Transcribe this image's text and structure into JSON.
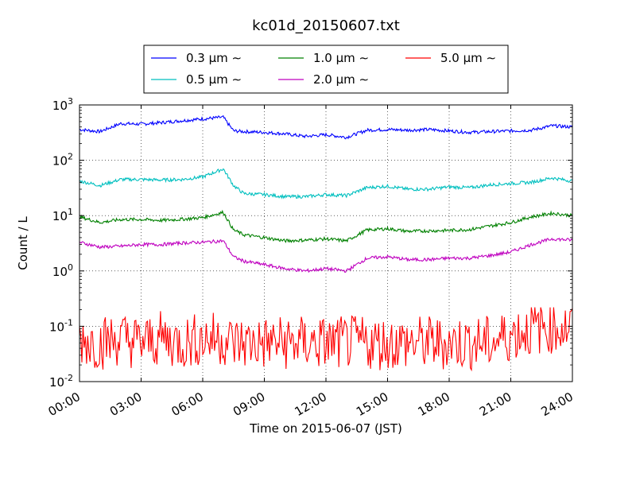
{
  "chart_data": {
    "type": "line",
    "title": "kc01d_20150607.txt",
    "xlabel": "Time on 2015-06-07 (JST)",
    "ylabel": "Count / L",
    "yscale": "log",
    "ylim": [
      0.01,
      1000
    ],
    "xlim": [
      "00:00",
      "24:00"
    ],
    "grid": true,
    "legend_position": "top-center",
    "x_ticks": [
      "00:00",
      "03:00",
      "06:00",
      "09:00",
      "12:00",
      "15:00",
      "18:00",
      "21:00",
      "24:00"
    ],
    "y_ticks": [
      {
        "base": "10",
        "exp": "-2",
        "value": 0.01
      },
      {
        "base": "10",
        "exp": "-1",
        "value": 0.1
      },
      {
        "base": "10",
        "exp": "0",
        "value": 1
      },
      {
        "base": "10",
        "exp": "1",
        "value": 10
      },
      {
        "base": "10",
        "exp": "2",
        "value": 100
      },
      {
        "base": "10",
        "exp": "3",
        "value": 1000
      }
    ],
    "x_hours": [
      0,
      1,
      2,
      3,
      4,
      5,
      6,
      7,
      7.5,
      8,
      9,
      10,
      11,
      12,
      13,
      14,
      15,
      16,
      17,
      18,
      19,
      20,
      21,
      22,
      23,
      24
    ],
    "series": [
      {
        "name": "0.3 µm ∼",
        "color": "#0000ff",
        "values": [
          360,
          330,
          460,
          450,
          480,
          520,
          560,
          600,
          340,
          330,
          320,
          300,
          270,
          290,
          260,
          350,
          360,
          350,
          360,
          340,
          320,
          330,
          340,
          350,
          420,
          400
        ]
      },
      {
        "name": "0.5 µm ∼",
        "color": "#00bfbf",
        "values": [
          42,
          35,
          45,
          45,
          44,
          45,
          50,
          70,
          35,
          25,
          24,
          22,
          22,
          24,
          23,
          32,
          34,
          30,
          30,
          33,
          32,
          36,
          38,
          40,
          48,
          42
        ]
      },
      {
        "name": "1.0 µm ∼",
        "color": "#008000",
        "values": [
          9.5,
          7.5,
          8.5,
          8.5,
          8.2,
          8.6,
          9.2,
          11.5,
          5.5,
          4.5,
          4.0,
          3.5,
          3.6,
          3.8,
          3.5,
          5.5,
          5.8,
          5.2,
          5.3,
          5.4,
          5.6,
          6.5,
          7.5,
          9.5,
          11,
          10
        ]
      },
      {
        "name": "2.0 µm ∼",
        "color": "#bf00bf",
        "values": [
          3.3,
          2.7,
          2.8,
          3.0,
          3.0,
          3.2,
          3.3,
          3.5,
          1.8,
          1.5,
          1.3,
          1.1,
          1.0,
          1.1,
          1.0,
          1.7,
          1.8,
          1.6,
          1.6,
          1.7,
          1.7,
          1.9,
          2.2,
          3.0,
          3.8,
          3.6
        ]
      },
      {
        "name": "5.0 µm ∼",
        "color": "#ff0000",
        "values": [
          0.06,
          0.05,
          0.06,
          0.05,
          0.06,
          0.05,
          0.06,
          0.06,
          0.05,
          0.05,
          0.05,
          0.05,
          0.05,
          0.05,
          0.05,
          0.05,
          0.05,
          0.05,
          0.05,
          0.05,
          0.05,
          0.05,
          0.07,
          0.09,
          0.1,
          0.09
        ]
      }
    ]
  }
}
